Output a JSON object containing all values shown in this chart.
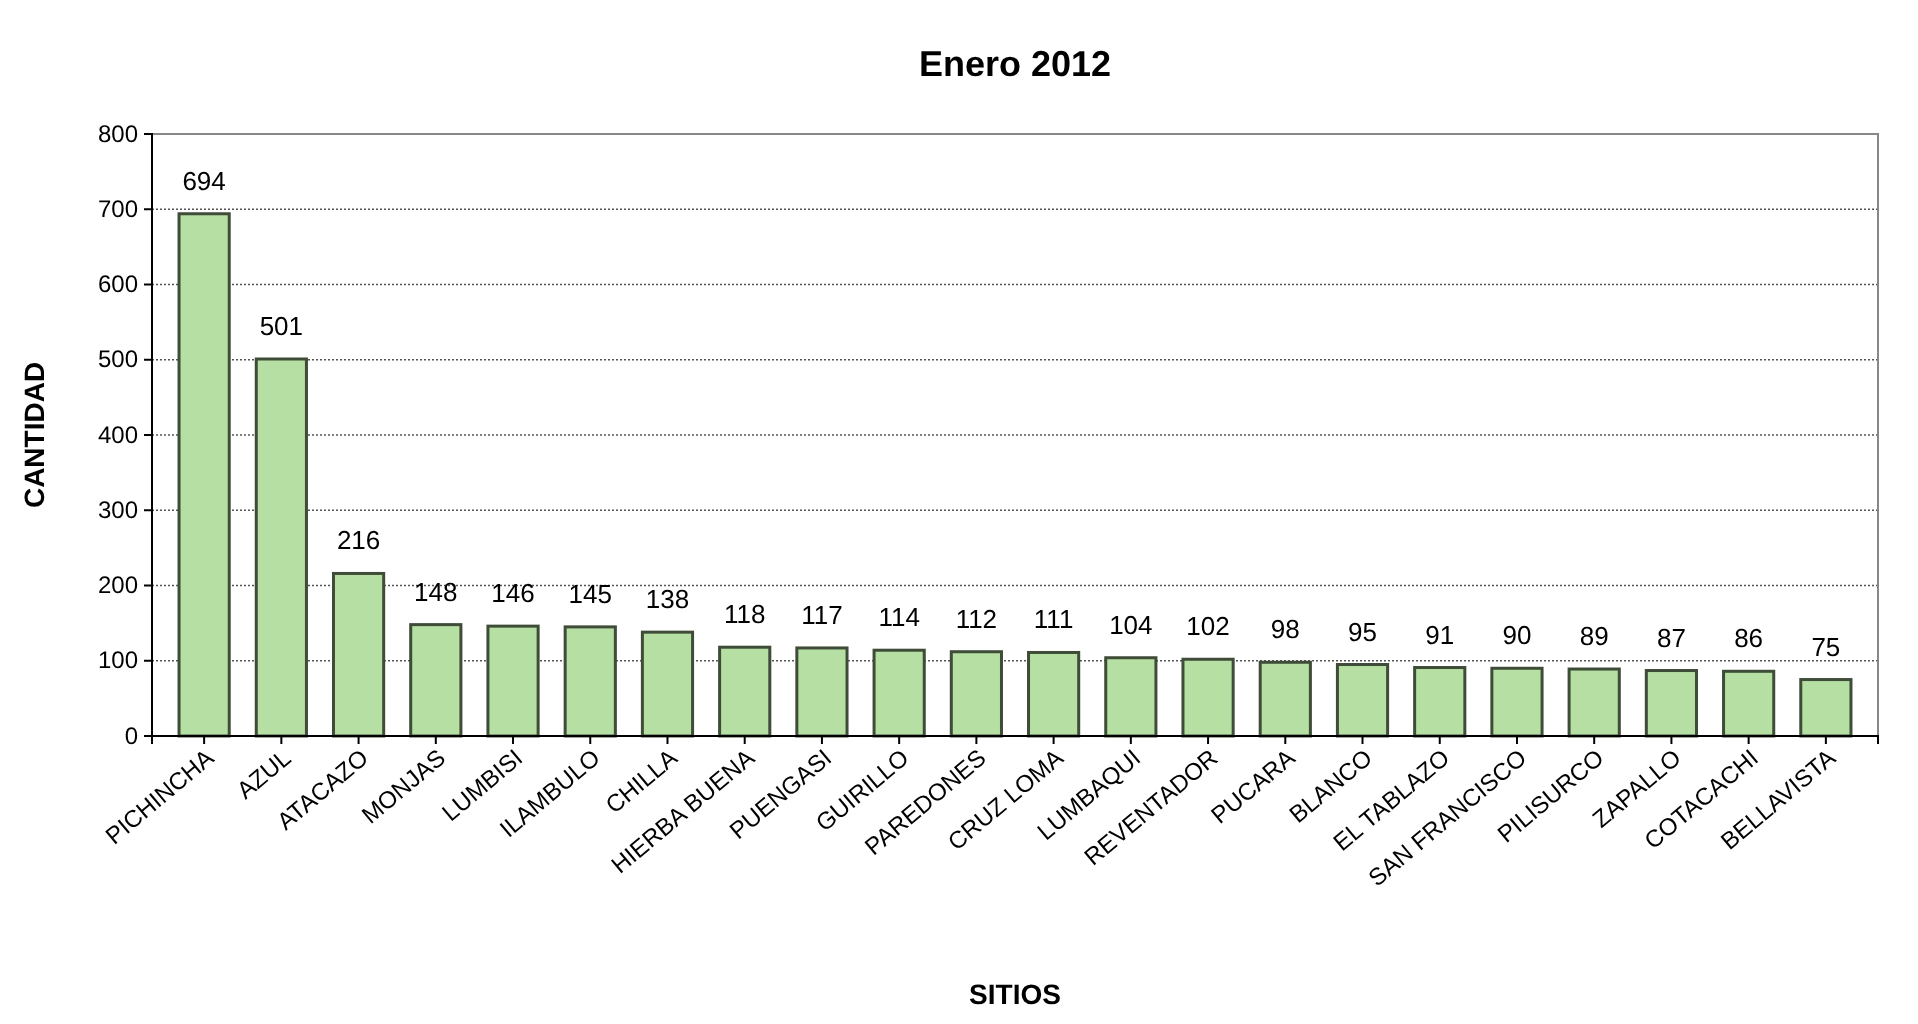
{
  "chart_data": {
    "type": "bar",
    "title": "Enero 2012",
    "xlabel": "SITIOS",
    "ylabel": "CANTIDAD",
    "categories": [
      "PICHINCHA",
      "AZUL",
      "ATACAZO",
      "MONJAS",
      "LUMBISI",
      "ILAMBULO",
      "CHILLA",
      "HIERBA BUENA",
      "PUENGASI",
      "GUIRILLO",
      "PAREDONES",
      "CRUZ LOMA",
      "LUMBAQUI",
      "REVENTADOR",
      "PUCARA",
      "BLANCO",
      "EL TABLAZO",
      "SAN FRANCISCO",
      "PILISURCO",
      "ZAPALLO",
      "COTACACHI",
      "BELLAVISTA"
    ],
    "values": [
      694,
      501,
      216,
      148,
      146,
      145,
      138,
      118,
      117,
      114,
      112,
      111,
      104,
      102,
      98,
      95,
      91,
      90,
      89,
      87,
      86,
      75
    ],
    "color": "#b5dfa3",
    "ylim": [
      0,
      800
    ],
    "yticks": [
      0,
      100,
      200,
      300,
      400,
      500,
      600,
      700,
      800
    ],
    "grid": "y",
    "data_labels": true
  }
}
